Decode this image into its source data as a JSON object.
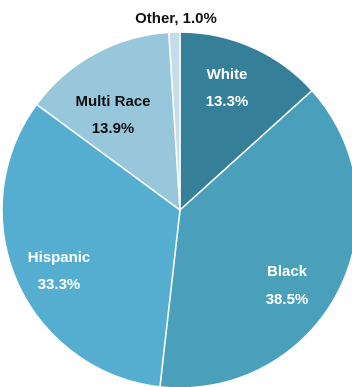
{
  "chart_data": {
    "type": "pie",
    "slices": [
      {
        "label": "White",
        "value": 13.3,
        "value_text": "13.3%",
        "color": "#357f99",
        "text_color": "#ffffff"
      },
      {
        "label": "Black",
        "value": 38.5,
        "value_text": "38.5%",
        "color": "#4aa0bb",
        "text_color": "#ffffff"
      },
      {
        "label": "Hispanic",
        "value": 33.3,
        "value_text": "33.3%",
        "color": "#55aed0",
        "text_color": "#ffffff"
      },
      {
        "label": "Multi Race",
        "value": 13.9,
        "value_text": "13.9%",
        "color": "#98c7dc",
        "text_color": "#111111"
      },
      {
        "label": "Other",
        "value": 1.0,
        "value_text": "Other, 1.0%",
        "color": "#c4dde9",
        "text_color": "#111111"
      }
    ],
    "start_angle_deg": 0,
    "direction": "clockwise"
  }
}
